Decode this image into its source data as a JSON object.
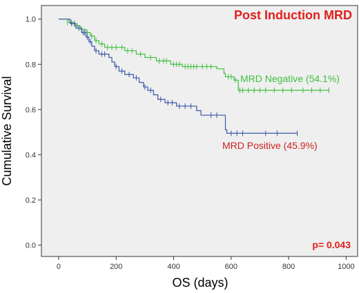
{
  "chart_data": {
    "type": "line",
    "subtype": "kaplan-meier",
    "title": "Post Induction MRD",
    "xlabel": "OS (days)",
    "ylabel": "Cumulative Survival",
    "xlim": [
      -60,
      1040
    ],
    "ylim": [
      -0.05,
      1.06
    ],
    "xticks": [
      "0",
      "200",
      "400",
      "600",
      "800",
      "1000"
    ],
    "yticks": [
      "0.0",
      "0.2",
      "0.4",
      "0.6",
      "0.8",
      "1.0"
    ],
    "annotation": "p= 0.043",
    "grid": false,
    "plot_background": "#efefef",
    "series": [
      {
        "name": "MRD Negative (54.1%)",
        "color": "#3fbf3f",
        "label_color": "#3fbf3f",
        "steps": [
          [
            0,
            1.0
          ],
          [
            35,
            0.985
          ],
          [
            55,
            0.97
          ],
          [
            75,
            0.955
          ],
          [
            95,
            0.94
          ],
          [
            110,
            0.925
          ],
          [
            125,
            0.905
          ],
          [
            140,
            0.89
          ],
          [
            160,
            0.875
          ],
          [
            230,
            0.86
          ],
          [
            270,
            0.845
          ],
          [
            300,
            0.83
          ],
          [
            340,
            0.815
          ],
          [
            390,
            0.8
          ],
          [
            430,
            0.79
          ],
          [
            550,
            0.78
          ],
          [
            575,
            0.76
          ],
          [
            580,
            0.745
          ],
          [
            610,
            0.73
          ],
          [
            625,
            0.685
          ],
          [
            940,
            0.685
          ]
        ],
        "censored": [
          [
            30,
            0.985
          ],
          [
            45,
            0.985
          ],
          [
            60,
            0.97
          ],
          [
            65,
            0.97
          ],
          [
            80,
            0.955
          ],
          [
            100,
            0.94
          ],
          [
            115,
            0.925
          ],
          [
            130,
            0.905
          ],
          [
            150,
            0.89
          ],
          [
            170,
            0.875
          ],
          [
            185,
            0.875
          ],
          [
            200,
            0.875
          ],
          [
            220,
            0.875
          ],
          [
            240,
            0.86
          ],
          [
            255,
            0.86
          ],
          [
            285,
            0.845
          ],
          [
            320,
            0.83
          ],
          [
            350,
            0.815
          ],
          [
            365,
            0.815
          ],
          [
            375,
            0.815
          ],
          [
            400,
            0.8
          ],
          [
            410,
            0.8
          ],
          [
            420,
            0.8
          ],
          [
            440,
            0.79
          ],
          [
            450,
            0.79
          ],
          [
            460,
            0.79
          ],
          [
            470,
            0.79
          ],
          [
            480,
            0.79
          ],
          [
            500,
            0.79
          ],
          [
            515,
            0.79
          ],
          [
            530,
            0.79
          ],
          [
            590,
            0.745
          ],
          [
            600,
            0.745
          ],
          [
            615,
            0.73
          ],
          [
            630,
            0.685
          ],
          [
            640,
            0.685
          ],
          [
            660,
            0.685
          ],
          [
            680,
            0.685
          ],
          [
            700,
            0.685
          ],
          [
            720,
            0.685
          ],
          [
            750,
            0.685
          ],
          [
            780,
            0.685
          ],
          [
            810,
            0.685
          ],
          [
            850,
            0.685
          ],
          [
            880,
            0.685
          ],
          [
            910,
            0.685
          ],
          [
            940,
            0.685
          ]
        ]
      },
      {
        "name": "MRD Positive (45.9%)",
        "color": "#3a55a8",
        "label_color": "#cc2222",
        "steps": [
          [
            0,
            1.0
          ],
          [
            40,
            0.98
          ],
          [
            60,
            0.96
          ],
          [
            80,
            0.94
          ],
          [
            95,
            0.92
          ],
          [
            105,
            0.9
          ],
          [
            115,
            0.88
          ],
          [
            125,
            0.86
          ],
          [
            140,
            0.845
          ],
          [
            175,
            0.83
          ],
          [
            185,
            0.81
          ],
          [
            195,
            0.79
          ],
          [
            210,
            0.77
          ],
          [
            230,
            0.755
          ],
          [
            260,
            0.74
          ],
          [
            280,
            0.72
          ],
          [
            295,
            0.7
          ],
          [
            310,
            0.685
          ],
          [
            330,
            0.665
          ],
          [
            345,
            0.645
          ],
          [
            370,
            0.63
          ],
          [
            410,
            0.615
          ],
          [
            480,
            0.595
          ],
          [
            495,
            0.575
          ],
          [
            580,
            0.51
          ],
          [
            585,
            0.495
          ],
          [
            830,
            0.495
          ]
        ],
        "censored": [
          [
            45,
            0.98
          ],
          [
            55,
            0.98
          ],
          [
            70,
            0.96
          ],
          [
            85,
            0.94
          ],
          [
            90,
            0.94
          ],
          [
            100,
            0.92
          ],
          [
            110,
            0.9
          ],
          [
            130,
            0.86
          ],
          [
            150,
            0.845
          ],
          [
            160,
            0.845
          ],
          [
            200,
            0.79
          ],
          [
            220,
            0.77
          ],
          [
            245,
            0.755
          ],
          [
            270,
            0.74
          ],
          [
            300,
            0.7
          ],
          [
            320,
            0.685
          ],
          [
            355,
            0.645
          ],
          [
            380,
            0.63
          ],
          [
            395,
            0.63
          ],
          [
            420,
            0.615
          ],
          [
            440,
            0.615
          ],
          [
            460,
            0.615
          ],
          [
            530,
            0.575
          ],
          [
            550,
            0.575
          ],
          [
            600,
            0.495
          ],
          [
            620,
            0.495
          ],
          [
            640,
            0.495
          ],
          [
            720,
            0.495
          ],
          [
            760,
            0.495
          ],
          [
            830,
            0.495
          ]
        ]
      }
    ]
  }
}
